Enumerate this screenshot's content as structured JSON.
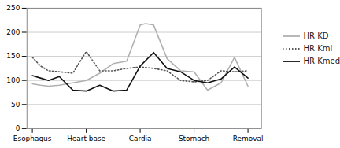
{
  "chart_data": {
    "type": "line",
    "xlim": [
      -0.2,
      8.5
    ],
    "xticks": [
      {
        "value": 0,
        "label": "Esophagus"
      },
      {
        "value": 2,
        "label": "Heart base"
      },
      {
        "value": 4,
        "label": "Cardia"
      },
      {
        "value": 6,
        "label": "Stomach"
      },
      {
        "value": 8,
        "label": "Removal"
      }
    ],
    "ylim": [
      0,
      250
    ],
    "yticks": [
      0,
      50,
      100,
      150,
      200,
      250
    ],
    "grid": true,
    "legend": "right",
    "series": [
      {
        "name": "HR KD",
        "color": "#b0b0b0",
        "line_style": "solid",
        "x": [
          0,
          0.3,
          0.6,
          1.0,
          1.5,
          2.0,
          2.5,
          3.0,
          3.5,
          4.0,
          4.2,
          4.5,
          5.0,
          5.5,
          6.0,
          6.5,
          7.0,
          7.5,
          8.0
        ],
        "values": [
          93,
          90,
          88,
          90,
          95,
          100,
          115,
          135,
          140,
          215,
          218,
          215,
          145,
          120,
          118,
          80,
          95,
          148,
          88
        ]
      },
      {
        "name": "HR Kmi",
        "color": "#555555",
        "line_style": "dotted",
        "x": [
          0,
          0.3,
          0.6,
          1.0,
          1.5,
          2.0,
          2.5,
          3.0,
          3.5,
          4.0,
          4.5,
          5.0,
          5.5,
          6.0,
          6.5,
          7.0,
          7.5,
          8.0
        ],
        "values": [
          148,
          130,
          120,
          118,
          115,
          160,
          120,
          120,
          125,
          128,
          125,
          120,
          100,
          97,
          100,
          120,
          118,
          120
        ]
      },
      {
        "name": "HR Kmed",
        "color": "#111111",
        "line_style": "solid",
        "x": [
          0,
          0.3,
          0.6,
          1.0,
          1.5,
          2.0,
          2.5,
          3.0,
          3.5,
          4.0,
          4.5,
          5.0,
          5.5,
          6.0,
          6.5,
          7.0,
          7.5,
          8.0
        ],
        "values": [
          110,
          105,
          100,
          108,
          80,
          78,
          90,
          78,
          80,
          130,
          158,
          125,
          118,
          100,
          95,
          103,
          128,
          105
        ]
      }
    ]
  }
}
